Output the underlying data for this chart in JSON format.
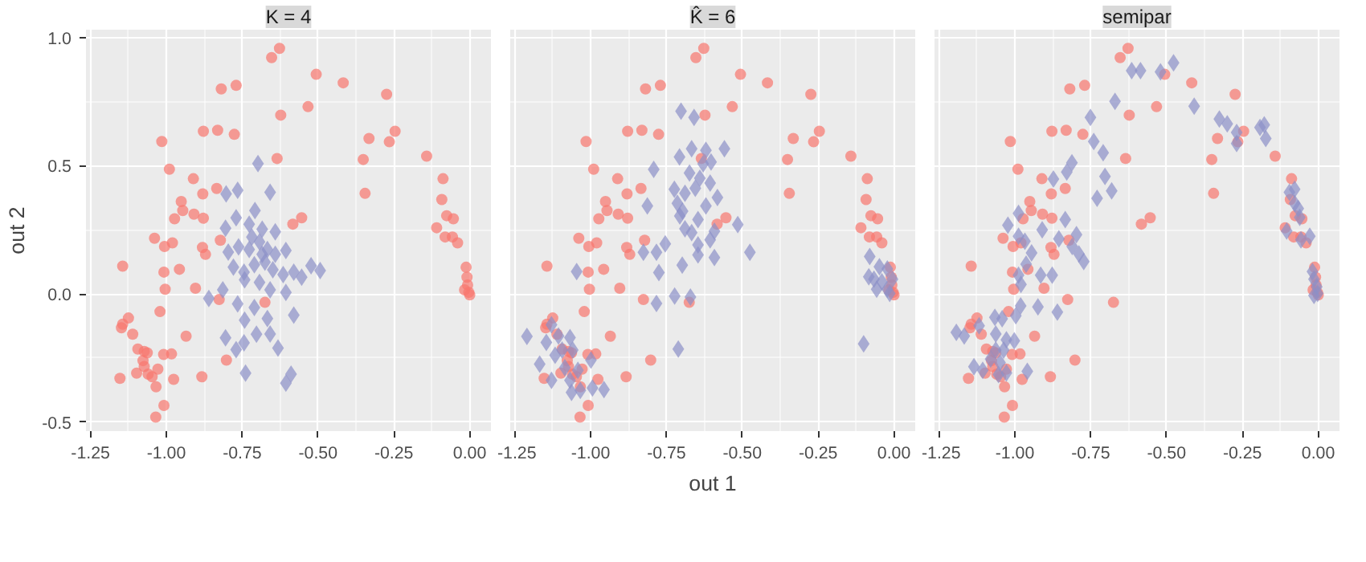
{
  "chart_data": [
    {
      "type": "scatter",
      "title": "K = 4",
      "ylabel": "out 2",
      "xlim": [
        -1.265,
        0.07
      ],
      "ylim": [
        -0.535,
        1.03
      ],
      "xticks": [
        {
          "value": -1.25,
          "label": "-1.25"
        },
        {
          "value": -1.0,
          "label": "-1.00"
        },
        {
          "value": -0.75,
          "label": "-0.75"
        },
        {
          "value": -0.5,
          "label": "-0.50"
        },
        {
          "value": -0.25,
          "label": "-0.25"
        },
        {
          "value": 0,
          "label": "0.00"
        }
      ],
      "yticks": [
        {
          "value": -0.5,
          "label": "-0.5"
        },
        {
          "value": 0,
          "label": "0.0"
        },
        {
          "value": 0.5,
          "label": "0.5"
        },
        {
          "value": 1.0,
          "label": "1.0"
        }
      ],
      "grid": true,
      "series": [
        {
          "color": "#f8766d",
          "marker": "circle",
          "x": [
            -0.627,
            -0.653,
            -0.506,
            -0.417,
            -0.274,
            -0.819,
            -0.77,
            -0.533,
            -0.623,
            -0.878,
            -0.831,
            -0.776,
            -1.015,
            -0.332,
            -0.265,
            -0.246,
            -0.351,
            -0.635,
            -0.142,
            -0.99,
            -0.911,
            -0.345,
            -0.88,
            -0.834,
            -0.088,
            -0.092,
            -0.951,
            -0.946,
            -0.909,
            -0.878,
            -0.973,
            -0.076,
            -0.054,
            -0.109,
            -0.554,
            -0.583,
            -0.081,
            -0.057,
            -0.04,
            -1.039,
            -0.98,
            -1.006,
            -0.822,
            -0.881,
            -0.871,
            -1.144,
            -0.957,
            -1.008,
            -1.004,
            -0.904,
            -0.826,
            -0.675,
            -1.021,
            -1.125,
            -1.144,
            -1.148,
            -1.111,
            -0.935,
            -1.094,
            -1.073,
            -1.063,
            -1.077,
            -1.073,
            -1.098,
            -1.028,
            -1.009,
            -0.983,
            -1.06,
            -1.047,
            -1.034,
            -1.153,
            -0.976,
            -0.883,
            -0.802,
            -1.008,
            -1.035,
            -0.012,
            -0.009,
            -0.007,
            -0.003,
            0.0,
            -0.017
          ],
          "values": [
            0.957,
            0.921,
            0.856,
            0.823,
            0.778,
            0.799,
            0.813,
            0.73,
            0.697,
            0.634,
            0.638,
            0.622,
            0.594,
            0.606,
            0.593,
            0.634,
            0.524,
            0.528,
            0.537,
            0.486,
            0.449,
            0.392,
            0.39,
            0.411,
            0.449,
            0.368,
            0.36,
            0.325,
            0.311,
            0.295,
            0.293,
            0.305,
            0.293,
            0.258,
            0.297,
            0.272,
            0.222,
            0.222,
            0.199,
            0.217,
            0.199,
            0.185,
            0.209,
            0.181,
            0.154,
            0.108,
            0.096,
            0.085,
            0.018,
            0.022,
            -0.022,
            -0.033,
            -0.069,
            -0.094,
            -0.118,
            -0.132,
            -0.157,
            -0.165,
            -0.215,
            -0.224,
            -0.23,
            -0.26,
            -0.283,
            -0.309,
            -0.293,
            -0.236,
            -0.234,
            -0.313,
            -0.323,
            -0.362,
            -0.329,
            -0.333,
            -0.323,
            -0.258,
            -0.435,
            -0.48,
            0.104,
            0.065,
            0.035,
            0.006,
            -0.004,
            0.016
          ]
        },
        {
          "color": "#8c90c8",
          "marker": "diamond",
          "x": [
            -0.698,
            -0.803,
            -0.765,
            -0.658,
            -0.708,
            -0.77,
            -0.805,
            -0.727,
            -0.684,
            -0.641,
            -0.796,
            -0.762,
            -0.727,
            -0.693,
            -0.667,
            -0.641,
            -0.606,
            -0.779,
            -0.744,
            -0.71,
            -0.675,
            -0.649,
            -0.615,
            -0.58,
            -0.554,
            -0.523,
            -0.493,
            -0.742,
            -0.693,
            -0.658,
            -0.606,
            -0.814,
            -0.86,
            -0.765,
            -0.71,
            -0.667,
            -0.58,
            -0.742,
            -0.703,
            -0.658,
            -0.805,
            -0.744,
            -0.77,
            -0.632,
            -0.739,
            -0.589,
            -0.606,
            -0.684,
            -0.718
          ],
          "values": [
            0.508,
            0.39,
            0.404,
            0.396,
            0.325,
            0.297,
            0.256,
            0.272,
            0.252,
            0.242,
            0.163,
            0.183,
            0.173,
            0.203,
            0.173,
            0.154,
            0.169,
            0.104,
            0.085,
            0.114,
            0.124,
            0.094,
            0.075,
            0.085,
            0.065,
            0.11,
            0.091,
            0.055,
            0.045,
            0.016,
            0.006,
            0.016,
            -0.018,
            -0.039,
            -0.053,
            -0.096,
            -0.083,
            -0.102,
            -0.157,
            -0.156,
            -0.171,
            -0.191,
            -0.217,
            -0.211,
            -0.309,
            -0.313,
            -0.348,
            0.154,
            0.222
          ]
        }
      ]
    },
    {
      "type": "scatter",
      "title": "K̂ = 6",
      "xlabel": "out 1",
      "xlim": [
        -1.265,
        0.07
      ],
      "ylim": [
        -0.535,
        1.03
      ],
      "tick_labels": "x",
      "xticks": [
        {
          "value": -1.25,
          "label": "-1.25"
        },
        {
          "value": -1.0,
          "label": "-1.00"
        },
        {
          "value": -0.75,
          "label": "-0.75"
        },
        {
          "value": -0.5,
          "label": "-0.50"
        },
        {
          "value": -0.25,
          "label": "-0.25"
        },
        {
          "value": 0,
          "label": "0.00"
        }
      ],
      "yticks": [
        -0.5,
        0,
        0.5,
        1.0
      ],
      "grid": true,
      "series": [
        {
          "color": "#f8766d",
          "marker": "circle",
          "x": [
            -0.627,
            -0.653,
            -0.506,
            -0.417,
            -0.274,
            -0.819,
            -0.77,
            -0.533,
            -0.623,
            -0.878,
            -0.831,
            -0.776,
            -1.015,
            -0.332,
            -0.265,
            -0.246,
            -0.351,
            -0.635,
            -0.142,
            -0.99,
            -0.911,
            -0.345,
            -0.88,
            -0.834,
            -0.088,
            -0.092,
            -0.951,
            -0.946,
            -0.909,
            -0.878,
            -0.973,
            -0.076,
            -0.054,
            -0.109,
            -0.554,
            -0.583,
            -0.081,
            -0.057,
            -0.04,
            -1.039,
            -0.98,
            -1.006,
            -0.822,
            -0.881,
            -0.871,
            -1.144,
            -0.957,
            -1.008,
            -1.004,
            -0.904,
            -0.826,
            -0.675,
            -1.021,
            -1.125,
            -1.144,
            -1.148,
            -1.111,
            -0.935,
            -1.094,
            -1.073,
            -1.063,
            -1.077,
            -1.073,
            -1.098,
            -1.028,
            -1.009,
            -0.983,
            -1.06,
            -1.047,
            -1.034,
            -1.153,
            -0.976,
            -0.883,
            -0.802,
            -1.008,
            -1.035,
            -0.012,
            -0.009,
            -0.007,
            -0.003,
            0.0,
            -0.017
          ],
          "values": [
            0.957,
            0.921,
            0.856,
            0.823,
            0.778,
            0.799,
            0.813,
            0.73,
            0.697,
            0.634,
            0.638,
            0.622,
            0.594,
            0.606,
            0.593,
            0.634,
            0.524,
            0.528,
            0.537,
            0.486,
            0.449,
            0.392,
            0.39,
            0.411,
            0.449,
            0.368,
            0.36,
            0.325,
            0.311,
            0.295,
            0.293,
            0.305,
            0.293,
            0.258,
            0.297,
            0.272,
            0.222,
            0.222,
            0.199,
            0.217,
            0.199,
            0.185,
            0.209,
            0.181,
            0.154,
            0.108,
            0.096,
            0.085,
            0.018,
            0.022,
            -0.022,
            -0.033,
            -0.069,
            -0.094,
            -0.118,
            -0.132,
            -0.157,
            -0.165,
            -0.215,
            -0.224,
            -0.23,
            -0.26,
            -0.283,
            -0.309,
            -0.293,
            -0.236,
            -0.234,
            -0.313,
            -0.323,
            -0.362,
            -0.329,
            -0.333,
            -0.323,
            -0.258,
            -0.435,
            -0.48,
            0.104,
            0.065,
            0.035,
            0.006,
            -0.004,
            0.016
          ]
        },
        {
          "color": "#8c90c8",
          "marker": "diamond",
          "x": [
            -0.702,
            -0.659,
            -0.707,
            -0.667,
            -0.62,
            -0.559,
            -0.792,
            -0.629,
            -0.603,
            -0.674,
            -0.64,
            -0.606,
            -0.724,
            -0.689,
            -0.655,
            -0.582,
            -0.813,
            -0.714,
            -0.697,
            -0.62,
            -0.706,
            -0.646,
            -0.515,
            -0.689,
            -0.667,
            -0.592,
            -0.606,
            -0.754,
            -0.783,
            -0.826,
            -0.646,
            -0.475,
            -0.592,
            -0.646,
            -0.698,
            -0.775,
            -1.046,
            -0.723,
            -0.671,
            -0.783,
            -0.711,
            -0.1,
            -0.08,
            -0.048,
            -0.022,
            -0.066,
            -0.04,
            -0.022,
            -0.057,
            -0.014,
            -0.005,
            -0.083,
            -1.21,
            -1.129,
            -1.146,
            -1.106,
            -1.068,
            -1.094,
            -1.059,
            -1.117,
            -1.168,
            -1.085,
            -1.129,
            -1.068,
            -1.034,
            -1.063,
            -0.994,
            -0.956,
            -0.999,
            -1.042
          ],
          "values": [
            0.712,
            0.688,
            0.534,
            0.566,
            0.56,
            0.566,
            0.485,
            0.507,
            0.514,
            0.471,
            0.451,
            0.432,
            0.408,
            0.392,
            0.412,
            0.376,
            0.343,
            0.353,
            0.323,
            0.343,
            0.304,
            0.29,
            0.27,
            0.254,
            0.239,
            0.244,
            0.211,
            0.195,
            0.162,
            0.162,
            0.191,
            0.162,
            0.142,
            0.152,
            0.112,
            0.083,
            0.087,
            -0.008,
            -0.012,
            -0.037,
            -0.215,
            -0.195,
            0.146,
            0.106,
            0.097,
            0.057,
            0.047,
            0.018,
            0.018,
            0.002,
            0.057,
            0.067,
            -0.166,
            -0.12,
            -0.189,
            -0.164,
            -0.17,
            -0.219,
            -0.219,
            -0.239,
            -0.274,
            -0.288,
            -0.337,
            -0.337,
            -0.376,
            -0.384,
            -0.367,
            -0.373,
            -0.258,
            -0.298
          ]
        }
      ]
    },
    {
      "type": "scatter",
      "title": "semipar",
      "xlim": [
        -1.265,
        0.07
      ],
      "ylim": [
        -0.535,
        1.03
      ],
      "tick_labels": "x",
      "xticks": [
        {
          "value": -1.25,
          "label": "-1.25"
        },
        {
          "value": -1.0,
          "label": "-1.00"
        },
        {
          "value": -0.75,
          "label": "-0.75"
        },
        {
          "value": -0.5,
          "label": "-0.50"
        },
        {
          "value": -0.25,
          "label": "-0.25"
        },
        {
          "value": 0,
          "label": "0.00"
        }
      ],
      "yticks": [
        -0.5,
        0,
        0.5,
        1.0
      ],
      "grid": true,
      "series": [
        {
          "color": "#f8766d",
          "marker": "circle",
          "x": [
            -0.627,
            -0.653,
            -0.506,
            -0.417,
            -0.274,
            -0.819,
            -0.77,
            -0.533,
            -0.623,
            -0.878,
            -0.831,
            -0.776,
            -1.015,
            -0.332,
            -0.265,
            -0.246,
            -0.351,
            -0.635,
            -0.142,
            -0.99,
            -0.911,
            -0.345,
            -0.88,
            -0.834,
            -0.088,
            -0.092,
            -0.951,
            -0.946,
            -0.909,
            -0.878,
            -0.973,
            -0.076,
            -0.054,
            -0.109,
            -0.554,
            -0.583,
            -0.081,
            -0.057,
            -0.04,
            -1.039,
            -0.98,
            -1.006,
            -0.822,
            -0.881,
            -0.871,
            -1.144,
            -0.957,
            -1.008,
            -1.004,
            -0.904,
            -0.826,
            -0.675,
            -1.021,
            -1.125,
            -1.144,
            -1.148,
            -1.111,
            -0.935,
            -1.094,
            -1.073,
            -1.063,
            -1.077,
            -1.073,
            -1.098,
            -1.028,
            -1.009,
            -0.983,
            -1.06,
            -1.047,
            -1.034,
            -1.153,
            -0.976,
            -0.883,
            -0.802,
            -1.008,
            -1.035,
            -0.012,
            -0.009,
            -0.007,
            -0.003,
            0.0,
            -0.017
          ],
          "values": [
            0.957,
            0.921,
            0.856,
            0.823,
            0.778,
            0.799,
            0.813,
            0.73,
            0.697,
            0.634,
            0.638,
            0.622,
            0.594,
            0.606,
            0.593,
            0.634,
            0.524,
            0.528,
            0.537,
            0.486,
            0.449,
            0.392,
            0.39,
            0.411,
            0.449,
            0.368,
            0.36,
            0.325,
            0.311,
            0.295,
            0.293,
            0.305,
            0.293,
            0.258,
            0.297,
            0.272,
            0.222,
            0.222,
            0.199,
            0.217,
            0.199,
            0.185,
            0.209,
            0.181,
            0.154,
            0.108,
            0.096,
            0.085,
            0.018,
            0.022,
            -0.022,
            -0.033,
            -0.069,
            -0.094,
            -0.118,
            -0.132,
            -0.157,
            -0.165,
            -0.215,
            -0.224,
            -0.23,
            -0.26,
            -0.283,
            -0.309,
            -0.293,
            -0.236,
            -0.234,
            -0.313,
            -0.323,
            -0.362,
            -0.329,
            -0.333,
            -0.323,
            -0.258,
            -0.435,
            -0.48,
            0.104,
            0.065,
            0.035,
            0.006,
            -0.004,
            0.016
          ]
        },
        {
          "color": "#8c90c8",
          "marker": "diamond",
          "x": [
            -0.477,
            -0.52,
            -0.615,
            -0.586,
            -0.67,
            -0.751,
            -0.409,
            -0.326,
            -0.3,
            -0.269,
            -0.269,
            -0.192,
            -0.178,
            -0.173,
            -0.74,
            -0.709,
            -0.812,
            -0.829,
            -0.873,
            -0.703,
            -0.681,
            -0.729,
            -0.988,
            -1.023,
            -0.91,
            -0.834,
            -0.988,
            -0.967,
            -0.855,
            -0.797,
            -0.811,
            -0.789,
            -0.773,
            -0.945,
            -0.963,
            -0.988,
            -0.915,
            -0.877,
            -0.98,
            -0.981,
            -0.924,
            -0.86,
            -0.997,
            -1.042,
            -1.066,
            -1.118,
            -1.193,
            -1.167,
            -1.063,
            -1.028,
            -1.002,
            -1.063,
            -1.037,
            -1.08,
            -1.049,
            -1.135,
            -1.106,
            -1.054,
            -1.028,
            -0.959,
            -0.095,
            -0.078,
            -0.078,
            -0.066,
            -0.061,
            -0.104,
            -0.057,
            -0.028,
            -0.019,
            -0.014,
            -0.005,
            -0.002,
            -0.014
          ],
          "values": [
            0.901,
            0.866,
            0.87,
            0.87,
            0.751,
            0.688,
            0.732,
            0.682,
            0.663,
            0.629,
            0.586,
            0.649,
            0.659,
            0.606,
            0.594,
            0.55,
            0.511,
            0.475,
            0.448,
            0.458,
            0.402,
            0.373,
            0.314,
            0.268,
            0.25,
            0.29,
            0.225,
            0.205,
            0.215,
            0.231,
            0.185,
            0.156,
            0.126,
            0.16,
            0.116,
            0.073,
            0.073,
            0.073,
            0.037,
            -0.047,
            -0.051,
            -0.071,
            -0.085,
            -0.097,
            -0.091,
            -0.124,
            -0.15,
            -0.164,
            -0.156,
            -0.179,
            -0.183,
            -0.219,
            -0.219,
            -0.254,
            -0.268,
            -0.284,
            -0.298,
            -0.314,
            -0.308,
            -0.302,
            0.396,
            0.408,
            0.353,
            0.333,
            0.298,
            0.245,
            0.211,
            0.225,
            0.087,
            0.057,
            0.028,
            0.002,
            -0.006
          ]
        }
      ]
    }
  ]
}
